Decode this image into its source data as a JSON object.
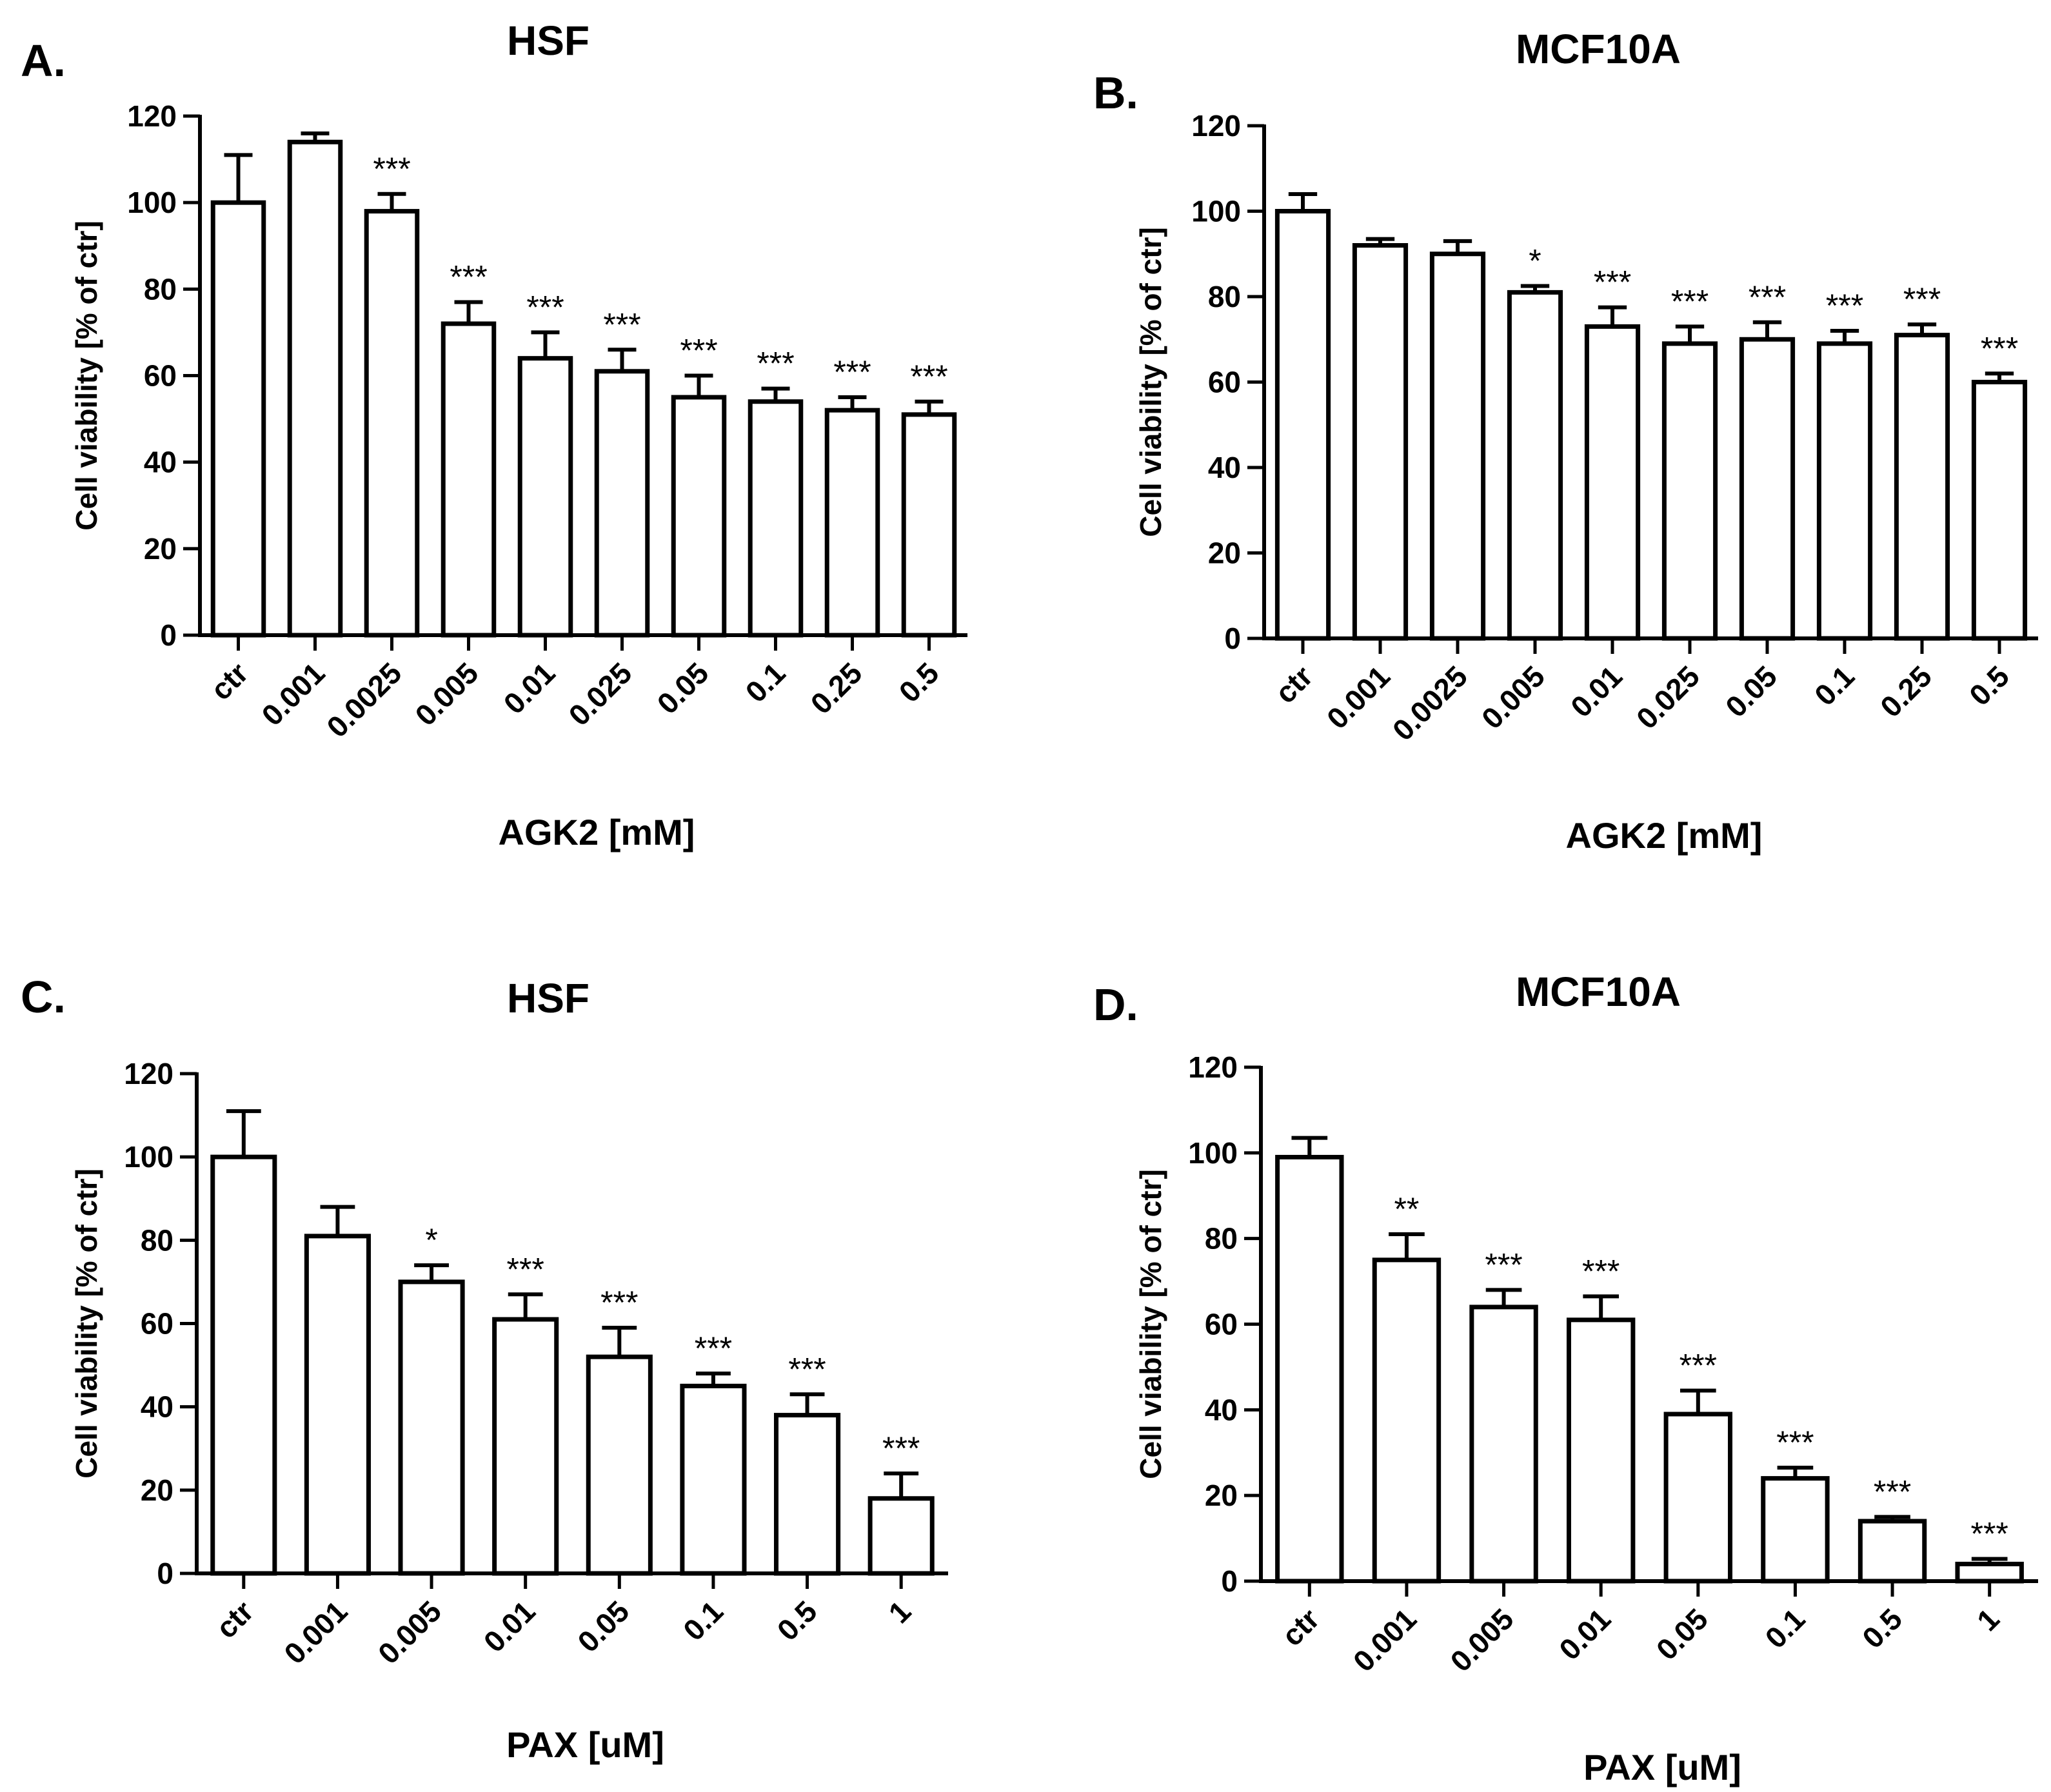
{
  "chart_data": [
    {
      "type": "bar",
      "panel": "A.",
      "title": "HSF",
      "xlabel": "AGK2 [mM]",
      "ylabel": "Cell viability [% of ctr]",
      "ylim": [
        0,
        120
      ],
      "yticks": [
        0,
        20,
        40,
        60,
        80,
        100,
        120
      ],
      "categories": [
        "ctr",
        "0.001",
        "0.0025",
        "0.005",
        "0.01",
        "0.025",
        "0.05",
        "0.1",
        "0.25",
        "0.5"
      ],
      "values": [
        100,
        114,
        98,
        72,
        64,
        61,
        55,
        54,
        52,
        51
      ],
      "errors": [
        11,
        2,
        4,
        5,
        6,
        5,
        5,
        3,
        3,
        3
      ],
      "significance": [
        "",
        "",
        "***",
        "***",
        "***",
        "***",
        "***",
        "***",
        "***",
        "***"
      ],
      "grid": false
    },
    {
      "type": "bar",
      "panel": "B.",
      "title": "MCF10A",
      "xlabel": "AGK2 [mM]",
      "ylabel": "Cell viability [% of ctr]",
      "ylim": [
        0,
        120
      ],
      "yticks": [
        0,
        20,
        40,
        60,
        80,
        100,
        120
      ],
      "categories": [
        "ctr",
        "0.001",
        "0.0025",
        "0.005",
        "0.01",
        "0.025",
        "0.05",
        "0.1",
        "0.25",
        "0.5"
      ],
      "values": [
        100,
        92,
        90,
        81,
        73,
        69,
        70,
        69,
        71,
        60
      ],
      "errors": [
        4,
        1.5,
        3,
        1.5,
        4.5,
        4,
        4,
        3,
        2.5,
        2
      ],
      "significance": [
        "",
        "",
        "",
        "*",
        "***",
        "***",
        "***",
        "***",
        "***",
        "***"
      ],
      "grid": false
    },
    {
      "type": "bar",
      "panel": "C.",
      "title": "HSF",
      "xlabel": "PAX [uM]",
      "ylabel": "Cell viability [% of ctr]",
      "ylim": [
        0,
        120
      ],
      "yticks": [
        0,
        20,
        40,
        60,
        80,
        100,
        120
      ],
      "categories": [
        "ctr",
        "0.001",
        "0.005",
        "0.01",
        "0.05",
        "0.1",
        "0.5",
        "1"
      ],
      "values": [
        100,
        81,
        70,
        61,
        52,
        45,
        38,
        18
      ],
      "errors": [
        11,
        7,
        4,
        6,
        7,
        3,
        5,
        6
      ],
      "significance": [
        "",
        "",
        "*",
        "***",
        "***",
        "***",
        "***",
        "***"
      ],
      "grid": false
    },
    {
      "type": "bar",
      "panel": "D.",
      "title": "MCF10A",
      "xlabel": "PAX [uM]",
      "ylabel": "Cell viability [% of ctr]",
      "ylim": [
        0,
        120
      ],
      "yticks": [
        0,
        20,
        40,
        60,
        80,
        100,
        120
      ],
      "categories": [
        "ctr",
        "0.001",
        "0.005",
        "0.01",
        "0.05",
        "0.1",
        "0.5",
        "1"
      ],
      "values": [
        99,
        75,
        64,
        61,
        39,
        24,
        14,
        4
      ],
      "errors": [
        4.5,
        6,
        4,
        5.5,
        5.5,
        2.5,
        1,
        1.2
      ],
      "significance": [
        "",
        "**",
        "***",
        "***",
        "***",
        "***",
        "***",
        "***"
      ],
      "grid": false
    }
  ]
}
